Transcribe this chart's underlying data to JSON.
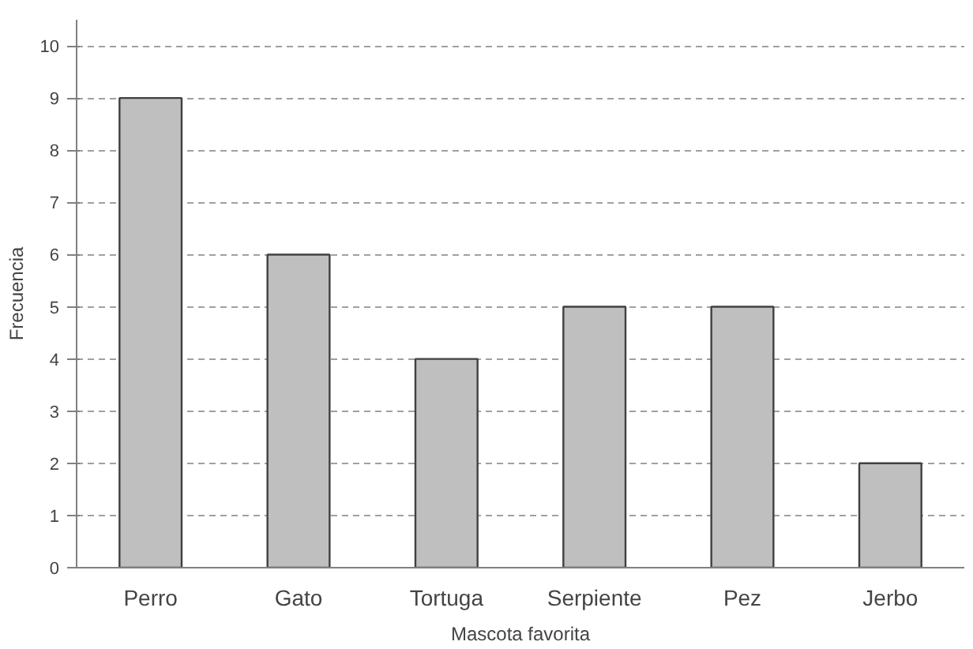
{
  "chart_data": {
    "type": "bar",
    "xlabel": "Mascota favorita",
    "ylabel": "Frecuencia",
    "categories": [
      "Perro",
      "Gato",
      "Tortuga",
      "Serpiente",
      "Pez",
      "Jerbo"
    ],
    "values": [
      9,
      6,
      4,
      5,
      5,
      2
    ],
    "color": "#bfbfbf",
    "ylim": [
      0,
      10.5
    ],
    "yticks": [
      0,
      1,
      2,
      3,
      4,
      5,
      6,
      7,
      8,
      9,
      10
    ],
    "grid": "y"
  }
}
